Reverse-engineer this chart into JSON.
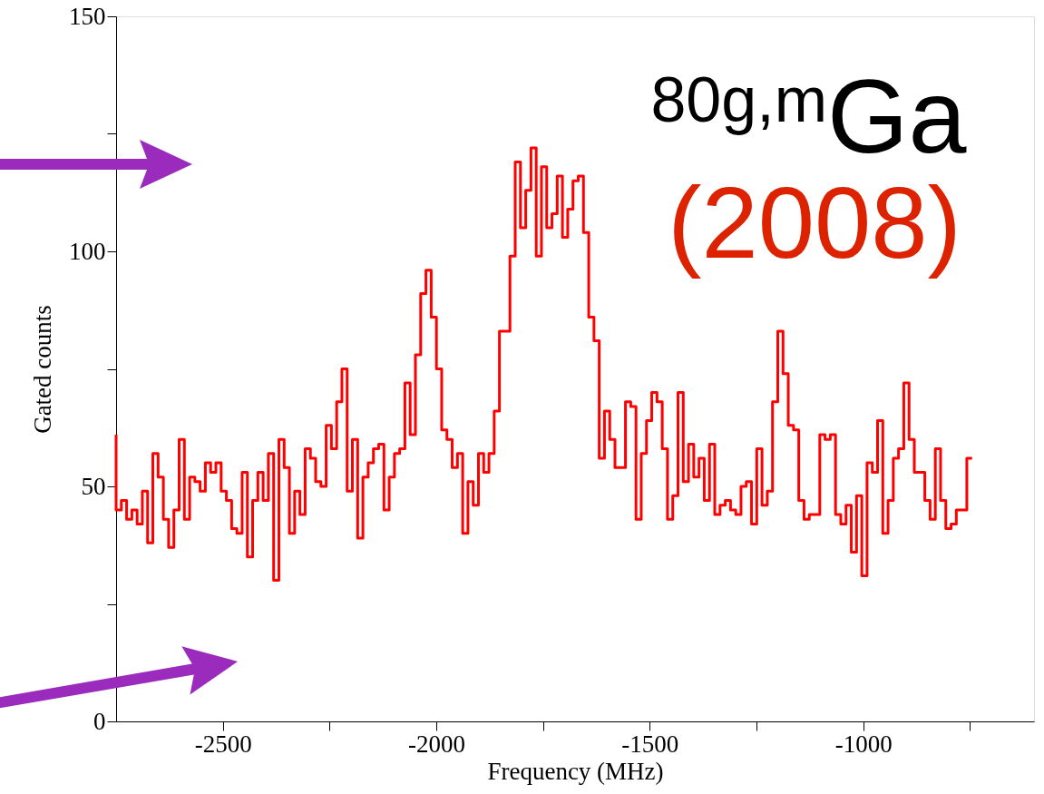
{
  "chart_data": {
    "type": "step",
    "xlabel": "Frequency (MHz)",
    "ylabel": "Gated counts",
    "color": "#ff0000",
    "x": [
      -2750,
      -2737.7,
      -2725.4,
      -2713.1,
      -2700.8,
      -2688.5,
      -2676.2,
      -2663.9,
      -2651.6,
      -2639.3,
      -2627,
      -2614.7,
      -2602.4,
      -2590.1,
      -2577.8,
      -2565.5,
      -2553.2,
      -2540.9,
      -2528.6,
      -2516.3,
      -2504,
      -2491.7,
      -2479.4,
      -2467.1,
      -2454.8,
      -2442.5,
      -2430.2,
      -2417.9,
      -2405.6,
      -2393.3,
      -2381,
      -2368.7,
      -2356.4,
      -2344.1,
      -2331.8,
      -2319.5,
      -2307.2,
      -2294.9,
      -2282.6,
      -2270.3,
      -2258,
      -2245.7,
      -2233.4,
      -2221.1,
      -2208.8,
      -2196.5,
      -2184.2,
      -2171.9,
      -2159.6,
      -2147.3,
      -2135,
      -2122.7,
      -2110.4,
      -2098.1,
      -2085.8,
      -2073.5,
      -2061.2,
      -2048.9,
      -2036.6,
      -2024.3,
      -2012,
      -1999.7,
      -1987.4,
      -1975.1,
      -1962.8,
      -1950.5,
      -1938.2,
      -1925.9,
      -1913.6,
      -1901.3,
      -1889,
      -1876.7,
      -1864.4,
      -1852.1,
      -1839.8,
      -1827.5,
      -1815.2,
      -1802.9,
      -1790.6,
      -1778.3,
      -1766,
      -1753.7,
      -1741.4,
      -1729.1,
      -1716.8,
      -1704.5,
      -1692.2,
      -1679.9,
      -1667.6,
      -1655.3,
      -1643,
      -1630.7,
      -1618.4,
      -1606.1,
      -1593.8,
      -1581.5,
      -1569.2,
      -1556.9,
      -1544.6,
      -1532.3,
      -1520,
      -1507.7,
      -1495.4,
      -1483.1,
      -1470.8,
      -1458.5,
      -1446.2,
      -1433.9,
      -1421.6,
      -1409.3,
      -1397,
      -1384.7,
      -1372.4,
      -1360.1,
      -1347.8,
      -1335.5,
      -1323.2,
      -1310.9,
      -1298.6,
      -1286.3,
      -1274,
      -1261.7,
      -1249.4,
      -1237.1,
      -1224.8,
      -1212.5,
      -1200.2,
      -1187.9,
      -1175.6,
      -1163.3,
      -1151,
      -1138.7,
      -1126.4,
      -1114.1,
      -1101.8,
      -1089.5,
      -1077.2,
      -1064.9,
      -1052.6,
      -1040.3,
      -1028,
      -1015.7,
      -1003.4,
      -991.1,
      -978.8,
      -966.5,
      -954.2,
      -941.9,
      -929.6,
      -917.3,
      -905,
      -892.7,
      -880.4,
      -868.1,
      -855.8,
      -843.5,
      -831.2,
      -818.9,
      -806.6,
      -794.3,
      -782,
      -769.7,
      -757.4,
      -745.1
    ],
    "values": [
      61,
      45,
      47,
      43,
      45,
      42,
      49,
      38,
      57,
      52,
      43,
      37,
      45,
      60,
      43,
      52,
      51,
      49,
      55,
      53,
      55,
      49,
      47,
      41,
      40,
      53,
      35,
      47,
      53,
      47,
      57,
      30,
      60,
      54,
      40,
      49,
      44,
      58,
      56,
      51,
      50,
      63,
      58,
      68,
      75,
      49,
      60,
      39,
      52,
      55,
      58,
      59,
      45,
      52,
      57,
      58,
      72,
      61,
      78,
      91,
      96,
      86,
      75,
      62,
      60,
      54,
      57,
      40,
      51,
      46,
      57,
      53,
      57,
      66,
      83,
      83,
      99,
      119,
      105,
      113,
      122,
      99,
      118,
      105,
      108,
      116,
      103,
      109,
      115,
      116,
      104,
      86,
      81,
      56,
      66,
      60,
      54,
      54,
      68,
      67,
      43,
      57,
      64,
      70,
      68,
      58,
      43,
      48,
      70,
      51,
      59,
      52,
      56,
      47,
      59,
      44,
      46,
      47,
      45,
      44,
      50,
      51,
      42,
      58,
      46,
      49,
      68,
      83,
      74,
      63,
      62,
      47,
      43,
      44,
      44,
      61,
      60,
      61,
      44,
      42,
      46,
      36,
      48,
      31,
      55,
      53,
      64,
      40,
      47,
      56,
      58,
      72,
      60,
      53,
      53,
      47,
      43,
      58,
      47,
      41,
      42,
      45,
      45,
      56
    ],
    "xlim": [
      -2750,
      -600
    ],
    "xticks": [
      -2500,
      {
        "value": -2250,
        "label": null
      },
      -2000,
      {
        "value": -1750,
        "label": null
      },
      -1500,
      {
        "value": -1250,
        "label": null
      },
      -1000,
      {
        "value": -750,
        "label": null
      }
    ],
    "ylim": [
      0,
      150
    ],
    "yticks": [
      0,
      {
        "value": 25,
        "label": null
      },
      50,
      {
        "value": 75,
        "label": null
      },
      100,
      {
        "value": 125,
        "label": null
      },
      150
    ],
    "line_style": "solid",
    "annotations": [
      "$^{80g,m}$Ga",
      "(2008)"
    ]
  }
}
